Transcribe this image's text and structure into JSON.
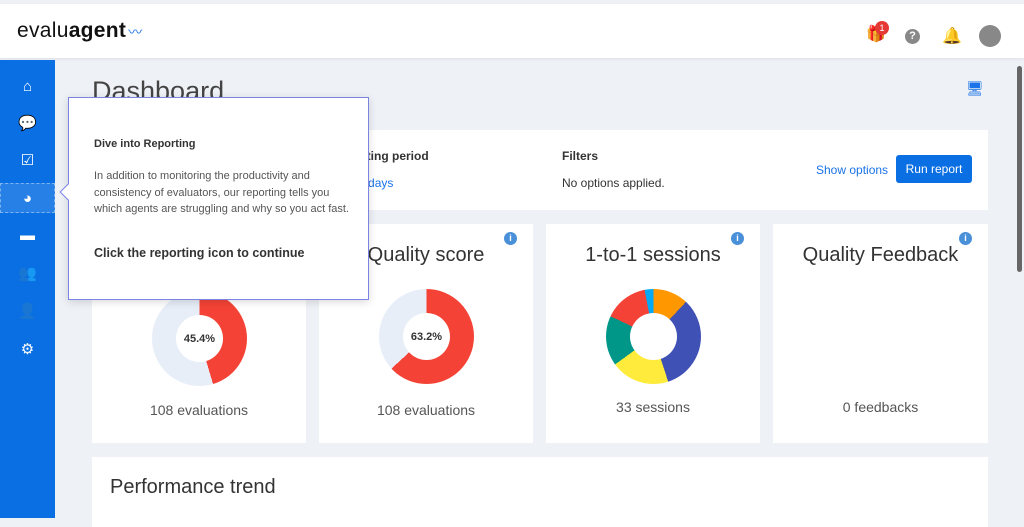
{
  "header": {
    "logo": "evaluagent",
    "gift_badge": "1",
    "icons": [
      "gift-icon",
      "help-icon",
      "bell-icon",
      "user-avatar-icon"
    ]
  },
  "sidebar": {
    "items": [
      {
        "icon": "home-icon"
      },
      {
        "icon": "chat-icon"
      },
      {
        "icon": "checkbox-icon"
      },
      {
        "icon": "pie-chart-icon",
        "active": true
      },
      {
        "icon": "message-icon"
      },
      {
        "icon": "users-icon"
      },
      {
        "icon": "user-settings-icon"
      },
      {
        "icon": "gear-icon"
      }
    ]
  },
  "page": {
    "title": "Dashboard"
  },
  "report": {
    "period_label": "Reporting period",
    "period_value": "Last 7 days",
    "filters_label": "Filters",
    "filters_value": "No options applied.",
    "show_options": "Show options",
    "run_report": "Run report"
  },
  "cards": [
    {
      "title": "",
      "percent": "45.4%",
      "value": 45.4,
      "color": "#f44336",
      "sub": "108 evaluations"
    },
    {
      "title": "Quality score",
      "percent": "63.2%",
      "value": 63.2,
      "color": "#f44336",
      "sub": "108 evaluations"
    },
    {
      "title": "1-to-1 sessions",
      "sub": "33 sessions",
      "segments": [
        {
          "color": "#ff9800",
          "value": 12
        },
        {
          "color": "#3f51b5",
          "value": 33
        },
        {
          "color": "#ffeb3b",
          "value": 20
        },
        {
          "color": "#009688",
          "value": 17
        },
        {
          "color": "#f44336",
          "value": 15
        },
        {
          "color": "#03a9f4",
          "value": 3
        }
      ]
    },
    {
      "title": "Quality Feedback",
      "sub": "0 feedbacks"
    }
  ],
  "performance": {
    "title": "Performance trend"
  },
  "tooltip": {
    "heading": "Dive into Reporting",
    "body": "In addition to monitoring the productivity and consistency of evaluators, our reporting tells you which agents are struggling and why so you act fast.",
    "cta": "Click the reporting icon to continue"
  }
}
